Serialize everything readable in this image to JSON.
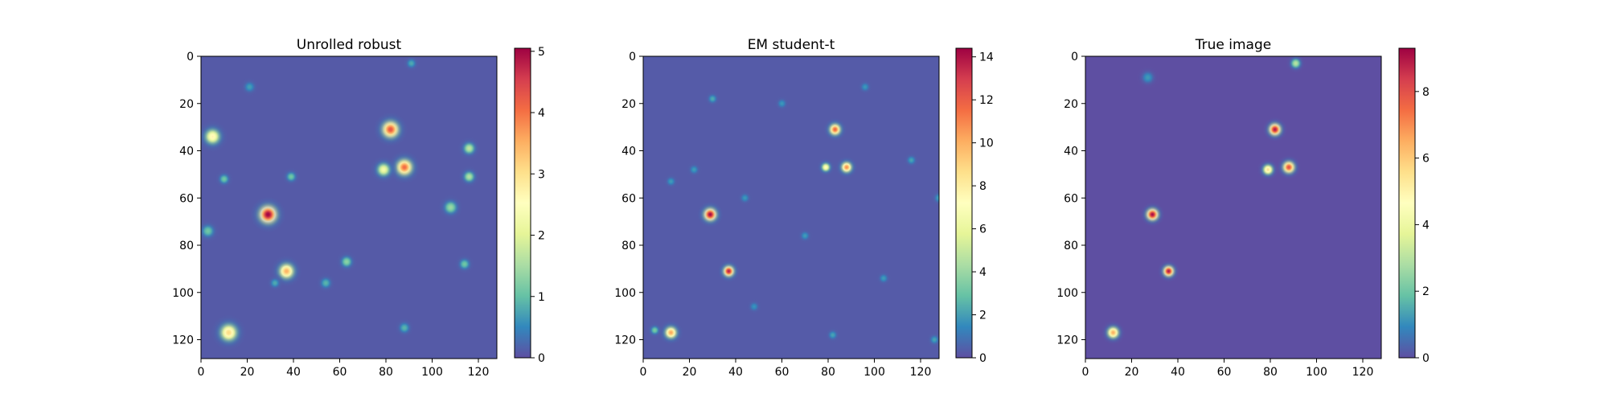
{
  "chart_data": [
    {
      "type": "heatmap",
      "title": "Unrolled robust",
      "xlabel": "",
      "ylabel": "",
      "xlim": [
        0,
        128
      ],
      "ylim": [
        128,
        0
      ],
      "xticks": [
        0,
        20,
        40,
        60,
        80,
        100,
        120
      ],
      "yticks": [
        0,
        20,
        40,
        60,
        80,
        100,
        120
      ],
      "colormap": "Spectral_r",
      "colorbar": {
        "min": 0,
        "max": 5.05,
        "ticks": [
          0,
          1,
          2,
          3,
          4,
          5
        ]
      },
      "background_value": 0.1,
      "blobs": [
        {
          "x": 29,
          "y": 67,
          "amp": 5.0,
          "sigma": 2.6
        },
        {
          "x": 82,
          "y": 31,
          "amp": 4.2,
          "sigma": 2.5
        },
        {
          "x": 88,
          "y": 47,
          "amp": 4.0,
          "sigma": 2.4
        },
        {
          "x": 37,
          "y": 91,
          "amp": 3.4,
          "sigma": 2.3
        },
        {
          "x": 12,
          "y": 117,
          "amp": 3.0,
          "sigma": 2.6
        },
        {
          "x": 5,
          "y": 34,
          "amp": 2.6,
          "sigma": 2.3
        },
        {
          "x": 79,
          "y": 48,
          "amp": 2.2,
          "sigma": 2.0
        },
        {
          "x": 116,
          "y": 39,
          "amp": 1.6,
          "sigma": 1.7
        },
        {
          "x": 116,
          "y": 51,
          "amp": 1.5,
          "sigma": 1.6
        },
        {
          "x": 108,
          "y": 64,
          "amp": 1.3,
          "sigma": 1.9
        },
        {
          "x": 63,
          "y": 87,
          "amp": 1.2,
          "sigma": 1.6
        },
        {
          "x": 10,
          "y": 52,
          "amp": 1.0,
          "sigma": 1.4
        },
        {
          "x": 39,
          "y": 51,
          "amp": 1.0,
          "sigma": 1.4
        },
        {
          "x": 3,
          "y": 74,
          "amp": 1.0,
          "sigma": 1.8
        },
        {
          "x": 114,
          "y": 88,
          "amp": 1.0,
          "sigma": 1.5
        },
        {
          "x": 54,
          "y": 96,
          "amp": 0.8,
          "sigma": 1.5
        },
        {
          "x": 88,
          "y": 115,
          "amp": 0.8,
          "sigma": 1.5
        },
        {
          "x": 21,
          "y": 13,
          "amp": 0.6,
          "sigma": 1.5
        },
        {
          "x": 91,
          "y": 3,
          "amp": 0.7,
          "sigma": 1.3
        },
        {
          "x": 32,
          "y": 96,
          "amp": 0.7,
          "sigma": 1.3
        }
      ]
    },
    {
      "type": "heatmap",
      "title": "EM student-t",
      "xlabel": "",
      "ylabel": "",
      "xlim": [
        0,
        128
      ],
      "ylim": [
        128,
        0
      ],
      "xticks": [
        0,
        20,
        40,
        60,
        80,
        100,
        120
      ],
      "yticks": [
        0,
        20,
        40,
        60,
        80,
        100,
        120
      ],
      "colormap": "Spectral_r",
      "colorbar": {
        "min": 0,
        "max": 14.4,
        "ticks": [
          0,
          2,
          4,
          6,
          8,
          10,
          12,
          14
        ]
      },
      "background_value": 0.3,
      "blobs": [
        {
          "x": 29,
          "y": 67,
          "amp": 14.0,
          "sigma": 1.9
        },
        {
          "x": 37,
          "y": 91,
          "amp": 13.5,
          "sigma": 1.6
        },
        {
          "x": 83,
          "y": 31,
          "amp": 11.5,
          "sigma": 1.7
        },
        {
          "x": 88,
          "y": 47,
          "amp": 10.5,
          "sigma": 1.6
        },
        {
          "x": 12,
          "y": 117,
          "amp": 10.0,
          "sigma": 1.8
        },
        {
          "x": 79,
          "y": 47,
          "amp": 7.0,
          "sigma": 1.3
        },
        {
          "x": 5,
          "y": 116,
          "amp": 3.0,
          "sigma": 1.2
        },
        {
          "x": 30,
          "y": 18,
          "amp": 2.0,
          "sigma": 1.2
        },
        {
          "x": 116,
          "y": 44,
          "amp": 1.8,
          "sigma": 1.2
        },
        {
          "x": 128,
          "y": 60,
          "amp": 1.8,
          "sigma": 1.3
        },
        {
          "x": 70,
          "y": 76,
          "amp": 1.6,
          "sigma": 1.2
        },
        {
          "x": 104,
          "y": 94,
          "amp": 1.6,
          "sigma": 1.2
        },
        {
          "x": 12,
          "y": 53,
          "amp": 1.6,
          "sigma": 1.2
        },
        {
          "x": 22,
          "y": 48,
          "amp": 1.6,
          "sigma": 1.2
        },
        {
          "x": 82,
          "y": 118,
          "amp": 1.8,
          "sigma": 1.2
        },
        {
          "x": 126,
          "y": 120,
          "amp": 1.8,
          "sigma": 1.2
        },
        {
          "x": 44,
          "y": 60,
          "amp": 1.5,
          "sigma": 1.2
        },
        {
          "x": 96,
          "y": 13,
          "amp": 1.5,
          "sigma": 1.2
        },
        {
          "x": 60,
          "y": 20,
          "amp": 1.5,
          "sigma": 1.2
        },
        {
          "x": 48,
          "y": 106,
          "amp": 1.4,
          "sigma": 1.2
        }
      ]
    },
    {
      "type": "heatmap",
      "title": "True image",
      "xlabel": "",
      "ylabel": "",
      "xlim": [
        0,
        128
      ],
      "ylim": [
        128,
        0
      ],
      "xticks": [
        0,
        20,
        40,
        60,
        80,
        100,
        120
      ],
      "yticks": [
        0,
        20,
        40,
        60,
        80,
        100,
        120
      ],
      "colormap": "Spectral_r",
      "colorbar": {
        "min": 0,
        "max": 9.3,
        "ticks": [
          0,
          2,
          4,
          6,
          8
        ]
      },
      "background_value": 0,
      "blobs": [
        {
          "x": 29,
          "y": 67,
          "amp": 9.2,
          "sigma": 1.8
        },
        {
          "x": 82,
          "y": 31,
          "amp": 9.0,
          "sigma": 1.8
        },
        {
          "x": 36,
          "y": 91,
          "amp": 9.0,
          "sigma": 1.6
        },
        {
          "x": 88,
          "y": 47,
          "amp": 8.0,
          "sigma": 1.8
        },
        {
          "x": 12,
          "y": 117,
          "amp": 6.5,
          "sigma": 1.8
        },
        {
          "x": 79,
          "y": 48,
          "amp": 5.5,
          "sigma": 1.6
        },
        {
          "x": 91,
          "y": 3,
          "amp": 3.0,
          "sigma": 1.5
        },
        {
          "x": 27,
          "y": 9,
          "amp": 1.2,
          "sigma": 1.8
        }
      ]
    }
  ]
}
